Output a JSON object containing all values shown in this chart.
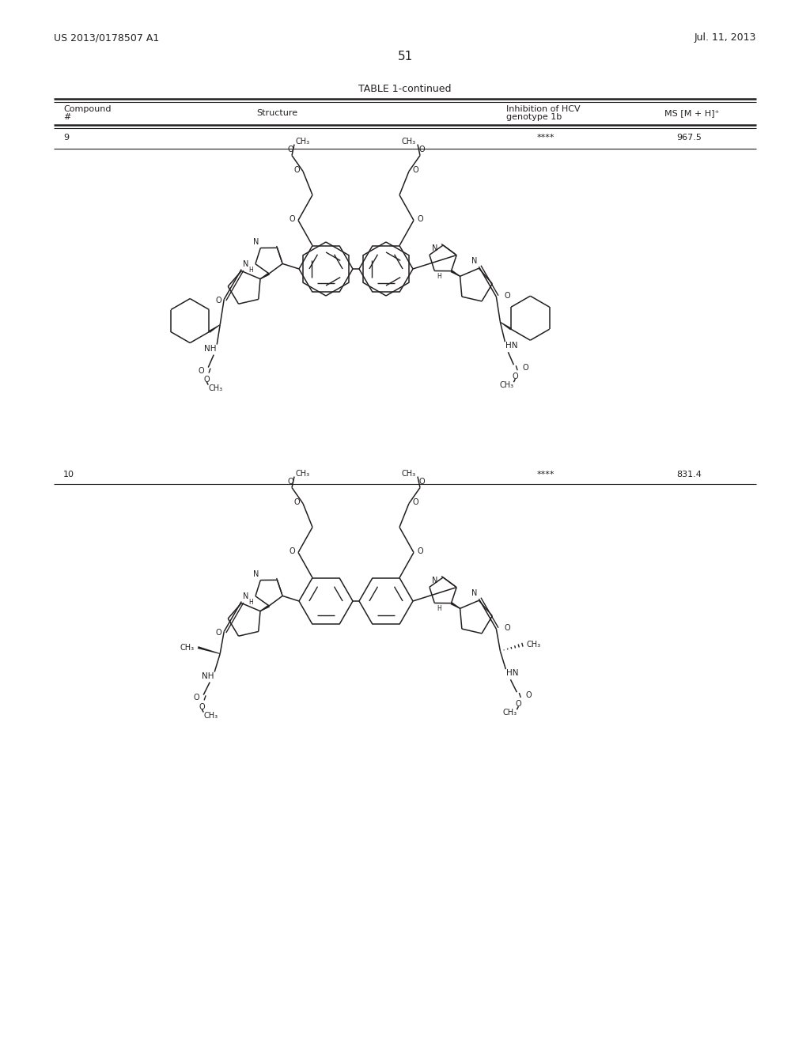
{
  "page_number": "51",
  "patent_left": "US 2013/0178507 A1",
  "patent_right": "Jul. 11, 2013",
  "table_title": "TABLE 1-continued",
  "background_color": "#ffffff",
  "text_color": "#231f20",
  "compound9_num": "9",
  "compound9_inhibition": "****",
  "compound9_ms": "967.5",
  "compound10_num": "10",
  "compound10_inhibition": "****",
  "compound10_ms": "831.4"
}
